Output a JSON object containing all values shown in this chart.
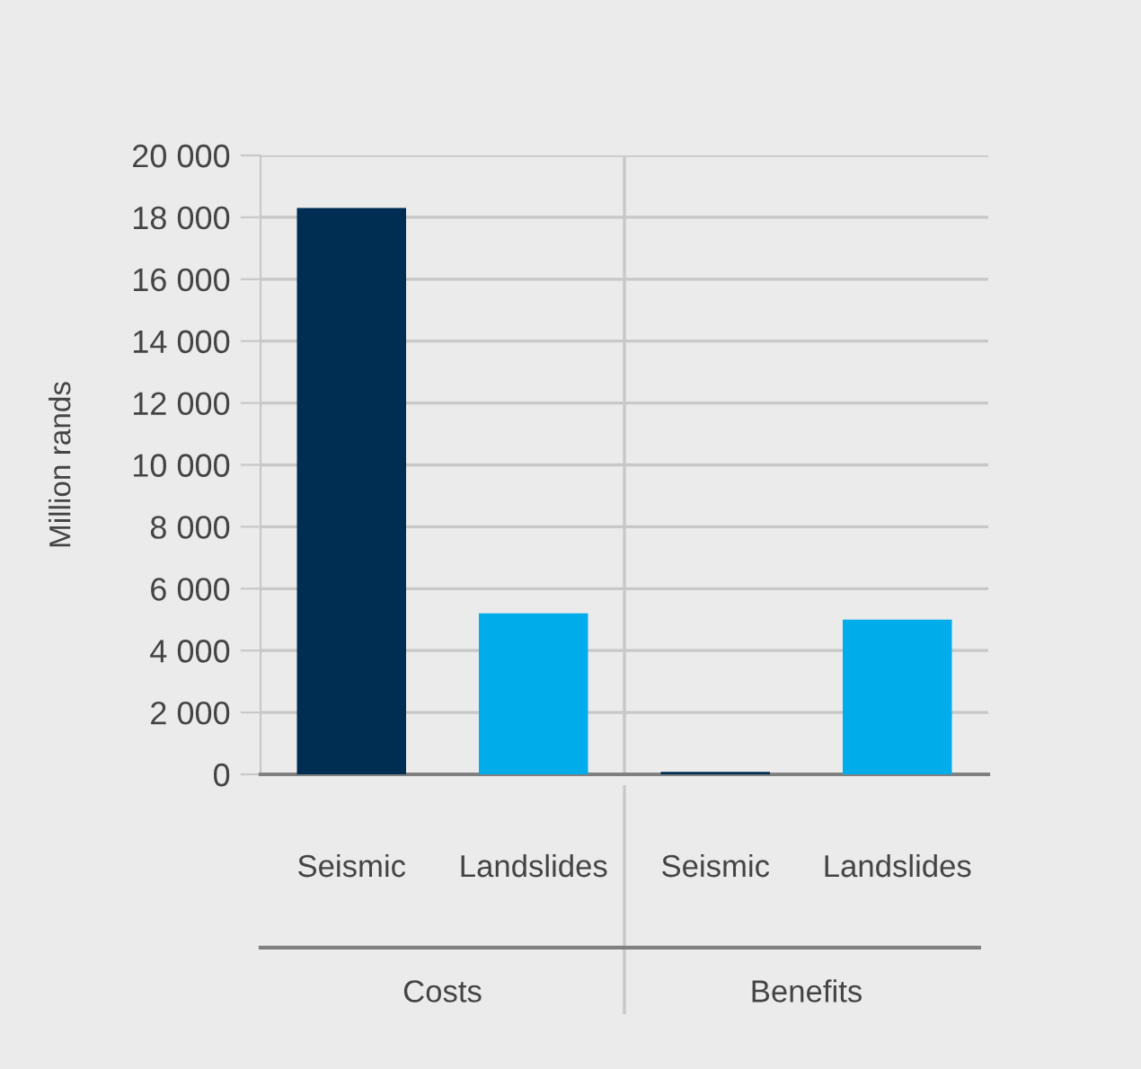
{
  "chart_data": {
    "type": "bar",
    "ylabel": "Million rands",
    "categories": [
      "Seismic",
      "Landslides",
      "Seismic",
      "Landslides"
    ],
    "values": [
      18300,
      5200,
      80,
      5000
    ],
    "colors": [
      "#002d52",
      "#00adea",
      "#002d52",
      "#00adea"
    ],
    "ylim": [
      0,
      20000
    ],
    "yticks": [
      0,
      {
        "value": 2000,
        "label": "2 000"
      },
      {
        "value": 4000,
        "label": "4 000"
      },
      {
        "value": 6000,
        "label": "6 000"
      },
      {
        "value": 8000,
        "label": "8 000"
      },
      {
        "value": 10000,
        "label": "10 000"
      },
      {
        "value": 12000,
        "label": "12 000"
      },
      {
        "value": 14000,
        "label": "14 000"
      },
      {
        "value": 16000,
        "label": "16 000"
      },
      {
        "value": 18000,
        "label": "18 000"
      },
      {
        "value": 20000,
        "label": "20 000"
      }
    ],
    "grid": "y",
    "annotations": [
      "Costs",
      "Benefits"
    ]
  }
}
